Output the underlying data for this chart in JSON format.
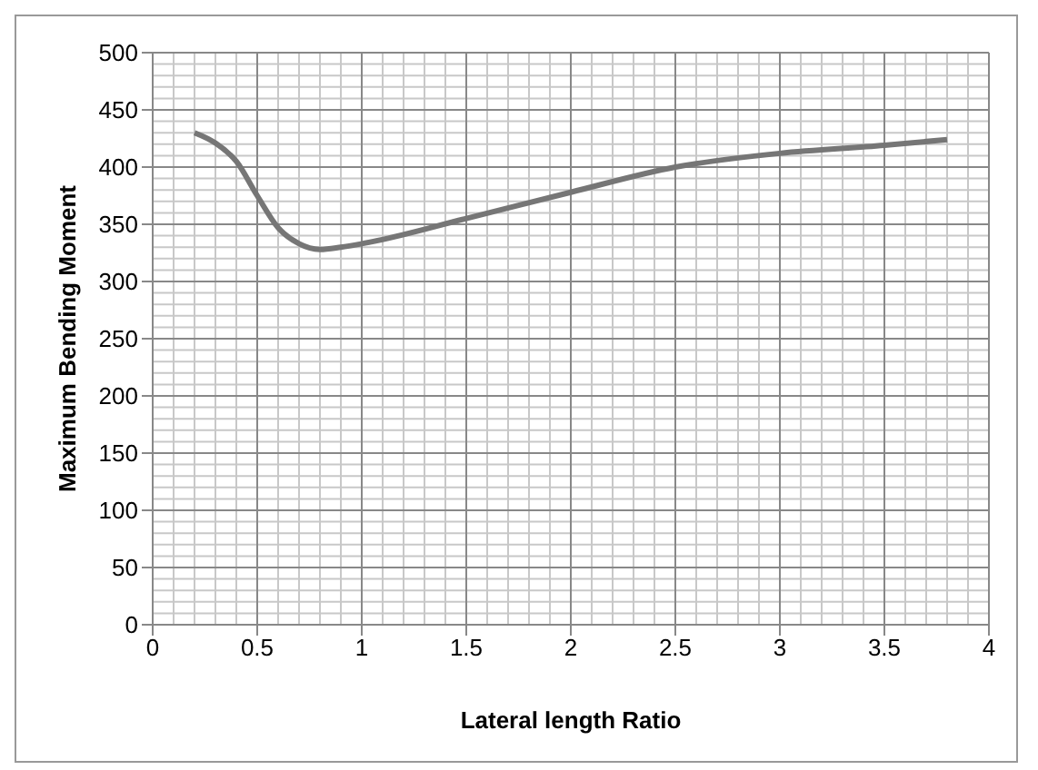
{
  "chart_data": {
    "type": "line",
    "xlabel": "Lateral length Ratio",
    "ylabel": "Maximum Bending Moment",
    "x": [
      0.2,
      0.3,
      0.4,
      0.5,
      0.6,
      0.7,
      0.8,
      0.9,
      1.0,
      1.5,
      2.0,
      2.5,
      3.0,
      3.5,
      3.8
    ],
    "series": [
      {
        "color": "#767676",
        "values": [
          430,
          421,
          405,
          375,
          347,
          333,
          328,
          330,
          333,
          355,
          378,
          400,
          412,
          419,
          424
        ]
      }
    ],
    "xlim": [
      0,
      4
    ],
    "xticks": [
      0,
      0.5,
      1,
      1.5,
      2,
      2.5,
      3,
      3.5,
      4
    ],
    "ylim": [
      0,
      500
    ],
    "yticks": [
      0,
      50,
      100,
      150,
      200,
      250,
      300,
      350,
      400,
      450,
      500
    ],
    "grid": true,
    "marker": "none",
    "line_style": "solid",
    "legend": false
  }
}
